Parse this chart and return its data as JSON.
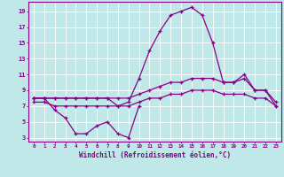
{
  "x": [
    0,
    1,
    2,
    3,
    4,
    5,
    6,
    7,
    8,
    9,
    10,
    11,
    12,
    13,
    14,
    15,
    16,
    17,
    18,
    19,
    20,
    21,
    22,
    23
  ],
  "line_main": [
    8,
    8,
    8,
    8,
    8,
    8,
    8,
    8,
    7,
    7.5,
    10.5,
    14,
    16.5,
    18.5,
    19,
    19.5,
    18.5,
    15,
    10,
    10,
    11,
    9,
    9,
    7
  ],
  "line_upper_flat": [
    8,
    8,
    8,
    8,
    8,
    8,
    8,
    8,
    8,
    8,
    8.5,
    9,
    9.5,
    10,
    10,
    10.5,
    10.5,
    10.5,
    10,
    10,
    10.5,
    9,
    9,
    7.5
  ],
  "line_lower_flat": [
    7.5,
    7.5,
    7,
    7,
    7,
    7,
    7,
    7,
    7,
    7,
    7.5,
    8,
    8,
    8.5,
    8.5,
    9,
    9,
    9,
    8.5,
    8.5,
    8.5,
    8,
    8,
    7
  ],
  "line_zigzag_x": [
    0,
    1,
    2,
    3,
    4,
    5,
    6,
    7,
    8,
    9,
    10
  ],
  "line_zigzag_y": [
    8,
    8,
    6.5,
    5.5,
    3.5,
    3.5,
    4.5,
    5,
    3.5,
    3,
    7
  ],
  "xlabel": "Windchill (Refroidissement éolien,°C)",
  "yticks": [
    3,
    5,
    7,
    9,
    11,
    13,
    15,
    17,
    19
  ],
  "xlim": [
    -0.5,
    23.5
  ],
  "ylim": [
    2.5,
    20.2
  ],
  "bg_color": "#c0e8e8",
  "grid_color": "#ffffff",
  "line_color": "#880088",
  "tick_color": "#880088"
}
